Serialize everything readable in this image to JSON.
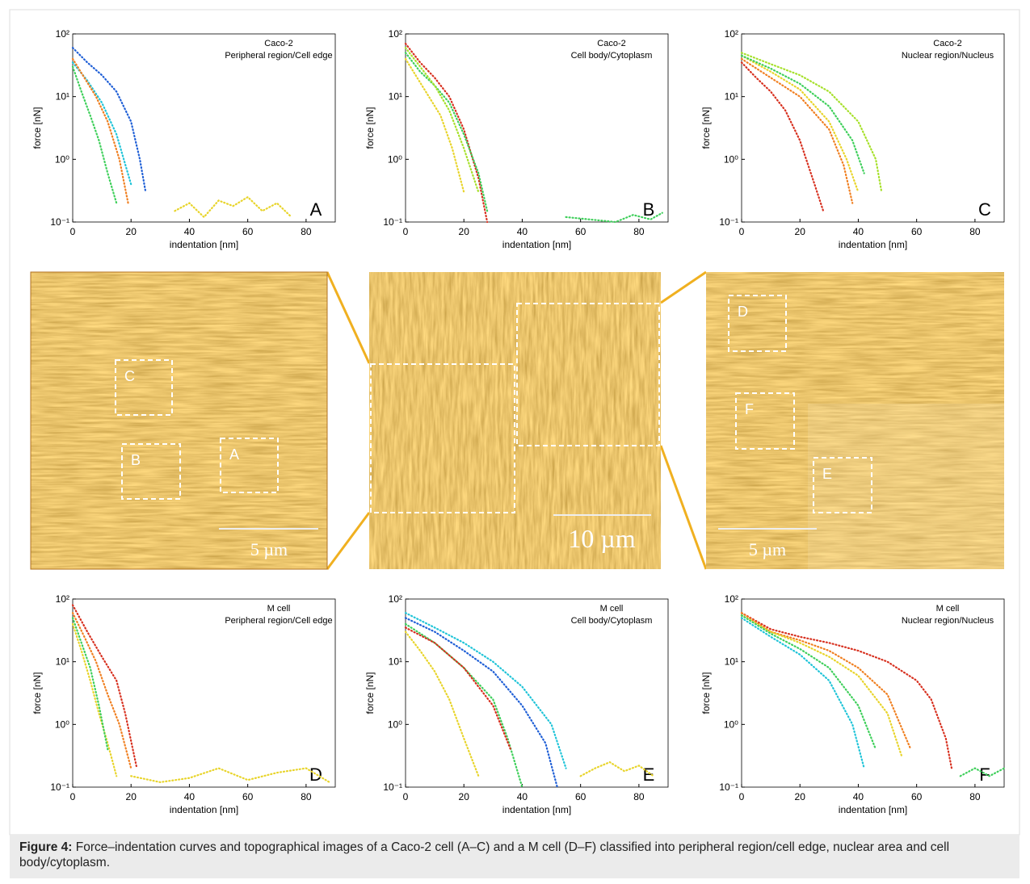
{
  "charts": [
    {
      "type": "scatter",
      "title_lines": [
        "Caco-2",
        "Peripheral region/Cell edge"
      ],
      "panel": "A",
      "xlabel": "indentation [nm]",
      "ylabel": "force [nN]",
      "log_y": true,
      "xlim": [
        0,
        90
      ],
      "ylim": [
        0.1,
        100
      ],
      "xticks": [
        0,
        20,
        40,
        60,
        80
      ],
      "yticks": [
        {
          "value": 0.1,
          "label": "10⁻¹"
        },
        {
          "value": 1,
          "label": "10⁰"
        },
        {
          "value": 10,
          "label": "10¹"
        },
        {
          "value": 100,
          "label": "10²"
        }
      ],
      "series": [
        {
          "color": "#1f5fd6",
          "x": [
            0,
            5,
            10,
            15,
            20,
            23,
            25
          ],
          "values": [
            60,
            35,
            22,
            12,
            4,
            1,
            0.3
          ]
        },
        {
          "color": "#20c4d8",
          "x": [
            0,
            5,
            10,
            15,
            20
          ],
          "values": [
            35,
            18,
            8,
            2.5,
            0.4
          ]
        },
        {
          "color": "#f07f20",
          "x": [
            0,
            4,
            8,
            12,
            16,
            19
          ],
          "values": [
            40,
            20,
            10,
            4,
            1,
            0.2
          ]
        },
        {
          "color": "#3ecf5a",
          "x": [
            0,
            3,
            6,
            9,
            12,
            15
          ],
          "values": [
            30,
            12,
            5,
            2,
            0.6,
            0.2
          ]
        },
        {
          "color": "#e8d42a",
          "x": [
            35,
            40,
            45,
            50,
            55,
            60,
            65,
            70,
            75
          ],
          "values": [
            0.15,
            0.2,
            0.12,
            0.22,
            0.18,
            0.25,
            0.15,
            0.2,
            0.12
          ]
        }
      ]
    },
    {
      "type": "scatter",
      "title_lines": [
        "Caco-2",
        "Cell body/Cytoplasm"
      ],
      "panel": "B",
      "xlabel": "indentation [nm]",
      "ylabel": "force [nN]",
      "log_y": true,
      "xlim": [
        0,
        90
      ],
      "ylim": [
        0.1,
        100
      ],
      "xticks": [
        0,
        20,
        40,
        60,
        80
      ],
      "yticks": [
        {
          "value": 0.1,
          "label": "10⁻¹"
        },
        {
          "value": 1,
          "label": "10⁰"
        },
        {
          "value": 10,
          "label": "10¹"
        },
        {
          "value": 100,
          "label": "10²"
        }
      ],
      "series": [
        {
          "color": "#d7301f",
          "x": [
            0,
            5,
            10,
            15,
            20,
            25,
            28
          ],
          "values": [
            70,
            35,
            20,
            10,
            3,
            0.5,
            0.1
          ]
        },
        {
          "color": "#3ecf5a",
          "x": [
            0,
            5,
            10,
            15,
            20,
            25,
            28
          ],
          "values": [
            50,
            25,
            15,
            8,
            2.5,
            0.6,
            0.15
          ]
        },
        {
          "color": "#e8d42a",
          "x": [
            0,
            4,
            8,
            12,
            16,
            20
          ],
          "values": [
            40,
            20,
            10,
            5,
            1.5,
            0.3
          ]
        },
        {
          "color": "#a6e02a",
          "x": [
            0,
            5,
            10,
            15,
            20,
            25
          ],
          "values": [
            60,
            30,
            15,
            6,
            1.5,
            0.3
          ]
        },
        {
          "color": "#3ecf5a",
          "x": [
            55,
            72,
            78,
            84,
            88
          ],
          "values": [
            0.12,
            0.1,
            0.13,
            0.11,
            0.14
          ]
        }
      ]
    },
    {
      "type": "scatter",
      "title_lines": [
        "Caco-2",
        "Nuclear region/Nucleus"
      ],
      "panel": "C",
      "xlabel": "indentation [nm]",
      "ylabel": "force [nN]",
      "log_y": true,
      "xlim": [
        0,
        90
      ],
      "ylim": [
        0.1,
        100
      ],
      "xticks": [
        0,
        20,
        40,
        60,
        80
      ],
      "yticks": [
        {
          "value": 0.1,
          "label": "10⁻¹"
        },
        {
          "value": 1,
          "label": "10⁰"
        },
        {
          "value": 10,
          "label": "10¹"
        },
        {
          "value": 100,
          "label": "10²"
        }
      ],
      "series": [
        {
          "color": "#d7301f",
          "x": [
            0,
            5,
            10,
            15,
            20,
            25,
            28
          ],
          "values": [
            35,
            20,
            12,
            6,
            2,
            0.4,
            0.15
          ]
        },
        {
          "color": "#f07f20",
          "x": [
            0,
            10,
            20,
            30,
            35,
            38
          ],
          "values": [
            40,
            20,
            10,
            3,
            0.8,
            0.2
          ]
        },
        {
          "color": "#e8d42a",
          "x": [
            0,
            10,
            20,
            30,
            36,
            40
          ],
          "values": [
            45,
            25,
            13,
            4,
            1,
            0.3
          ]
        },
        {
          "color": "#a6e02a",
          "x": [
            0,
            10,
            20,
            30,
            40,
            46,
            48
          ],
          "values": [
            50,
            33,
            22,
            12,
            4,
            1,
            0.3
          ]
        },
        {
          "color": "#3ecf5a",
          "x": [
            0,
            10,
            20,
            30,
            38,
            42
          ],
          "values": [
            45,
            28,
            16,
            7,
            2,
            0.6
          ]
        }
      ]
    },
    {
      "type": "scatter",
      "title_lines": [
        "M cell",
        "Peripheral region/Cell edge"
      ],
      "panel": "D",
      "xlabel": "indentation [nm]",
      "ylabel": "force [nN]",
      "log_y": true,
      "xlim": [
        0,
        90
      ],
      "ylim": [
        0.1,
        100
      ],
      "xticks": [
        0,
        20,
        40,
        60,
        80
      ],
      "yticks": [
        {
          "value": 0.1,
          "label": "10⁻¹"
        },
        {
          "value": 1,
          "label": "10⁰"
        },
        {
          "value": 10,
          "label": "10¹"
        },
        {
          "value": 100,
          "label": "10²"
        }
      ],
      "series": [
        {
          "color": "#d7301f",
          "x": [
            0,
            5,
            10,
            15,
            18,
            22
          ],
          "values": [
            80,
            30,
            12,
            5,
            1.5,
            0.2
          ]
        },
        {
          "color": "#f07f20",
          "x": [
            0,
            4,
            8,
            12,
            16,
            20
          ],
          "values": [
            60,
            25,
            10,
            3,
            1,
            0.2
          ]
        },
        {
          "color": "#e8d42a",
          "x": [
            0,
            3,
            6,
            9,
            12,
            15
          ],
          "values": [
            40,
            15,
            5,
            1.5,
            0.5,
            0.15
          ]
        },
        {
          "color": "#3ecf5a",
          "x": [
            0,
            3,
            6,
            9,
            12
          ],
          "values": [
            50,
            20,
            8,
            2,
            0.4
          ]
        },
        {
          "color": "#e8d42a",
          "x": [
            20,
            30,
            40,
            50,
            60,
            70,
            80,
            88
          ],
          "values": [
            0.15,
            0.12,
            0.14,
            0.2,
            0.13,
            0.17,
            0.2,
            0.12
          ]
        }
      ]
    },
    {
      "type": "scatter",
      "title_lines": [
        "M cell",
        "Cell body/Cytoplasm"
      ],
      "panel": "E",
      "xlabel": "indentation [nm]",
      "ylabel": "force [nN]",
      "log_y": true,
      "xlim": [
        0,
        90
      ],
      "ylim": [
        0.1,
        100
      ],
      "xticks": [
        0,
        20,
        40,
        60,
        80
      ],
      "yticks": [
        {
          "value": 0.1,
          "label": "10⁻¹"
        },
        {
          "value": 1,
          "label": "10⁰"
        },
        {
          "value": 10,
          "label": "10¹"
        },
        {
          "value": 100,
          "label": "10²"
        }
      ],
      "series": [
        {
          "color": "#1f5fd6",
          "x": [
            0,
            10,
            20,
            30,
            40,
            48,
            52
          ],
          "values": [
            50,
            30,
            15,
            7,
            2,
            0.5,
            0.1
          ]
        },
        {
          "color": "#20c4d8",
          "x": [
            0,
            10,
            20,
            30,
            40,
            50,
            55
          ],
          "values": [
            60,
            35,
            20,
            10,
            4,
            1,
            0.2
          ]
        },
        {
          "color": "#3ecf5a",
          "x": [
            0,
            10,
            20,
            30,
            35,
            40
          ],
          "values": [
            40,
            20,
            8,
            2.5,
            0.6,
            0.1
          ]
        },
        {
          "color": "#e8d42a",
          "x": [
            0,
            5,
            10,
            15,
            20,
            25
          ],
          "values": [
            30,
            15,
            7,
            2.5,
            0.6,
            0.15
          ]
        },
        {
          "color": "#d7301f",
          "x": [
            0,
            10,
            20,
            30,
            36
          ],
          "values": [
            35,
            20,
            8,
            2,
            0.4
          ]
        },
        {
          "color": "#e8d42a",
          "x": [
            60,
            65,
            70,
            75,
            80,
            85
          ],
          "values": [
            0.15,
            0.2,
            0.25,
            0.18,
            0.22,
            0.15
          ]
        }
      ]
    },
    {
      "type": "scatter",
      "title_lines": [
        "M cell",
        "Nuclear region/Nucleus"
      ],
      "panel": "F",
      "xlabel": "indentation [nm]",
      "ylabel": "force [nN]",
      "log_y": true,
      "xlim": [
        0,
        90
      ],
      "ylim": [
        0.1,
        100
      ],
      "xticks": [
        0,
        20,
        40,
        60,
        80
      ],
      "yticks": [
        {
          "value": 0.1,
          "label": "10⁻¹"
        },
        {
          "value": 1,
          "label": "10⁰"
        },
        {
          "value": 10,
          "label": "10¹"
        },
        {
          "value": 100,
          "label": "10²"
        }
      ],
      "series": [
        {
          "color": "#d7301f",
          "x": [
            0,
            10,
            20,
            30,
            40,
            50,
            60,
            65,
            70,
            72
          ],
          "values": [
            60,
            33,
            25,
            20,
            15,
            10,
            5,
            2.5,
            0.6,
            0.2
          ]
        },
        {
          "color": "#f07f20",
          "x": [
            0,
            10,
            20,
            30,
            40,
            50,
            58
          ],
          "values": [
            60,
            30,
            22,
            15,
            8,
            3,
            0.4
          ]
        },
        {
          "color": "#e8d42a",
          "x": [
            0,
            10,
            20,
            30,
            40,
            50,
            55
          ],
          "values": [
            55,
            30,
            20,
            12,
            6,
            1.5,
            0.3
          ]
        },
        {
          "color": "#3ecf5a",
          "x": [
            0,
            10,
            20,
            30,
            40,
            46
          ],
          "values": [
            55,
            28,
            16,
            8,
            2,
            0.4
          ]
        },
        {
          "color": "#20c4d8",
          "x": [
            0,
            10,
            20,
            30,
            38,
            42
          ],
          "values": [
            50,
            25,
            13,
            5,
            1,
            0.2
          ]
        },
        {
          "color": "#3ecf5a",
          "x": [
            75,
            80,
            85,
            90
          ],
          "values": [
            0.15,
            0.2,
            0.15,
            0.2
          ]
        }
      ]
    }
  ],
  "images": [
    {
      "boxes": [
        "C",
        "B",
        "A"
      ],
      "scale_bar": "5 µm"
    },
    {
      "scale_bar": "10 µm"
    },
    {
      "boxes": [
        "D",
        "F",
        "E"
      ],
      "scale_bar": "5 µm"
    }
  ],
  "caption": {
    "label": "Figure 4:",
    "text": " Force–indentation curves and topographical images of a Caco-2 cell (A–C) and a M cell (D–F) classified into peripheral region/cell edge, nuclear area and cell body/cytoplasm."
  }
}
